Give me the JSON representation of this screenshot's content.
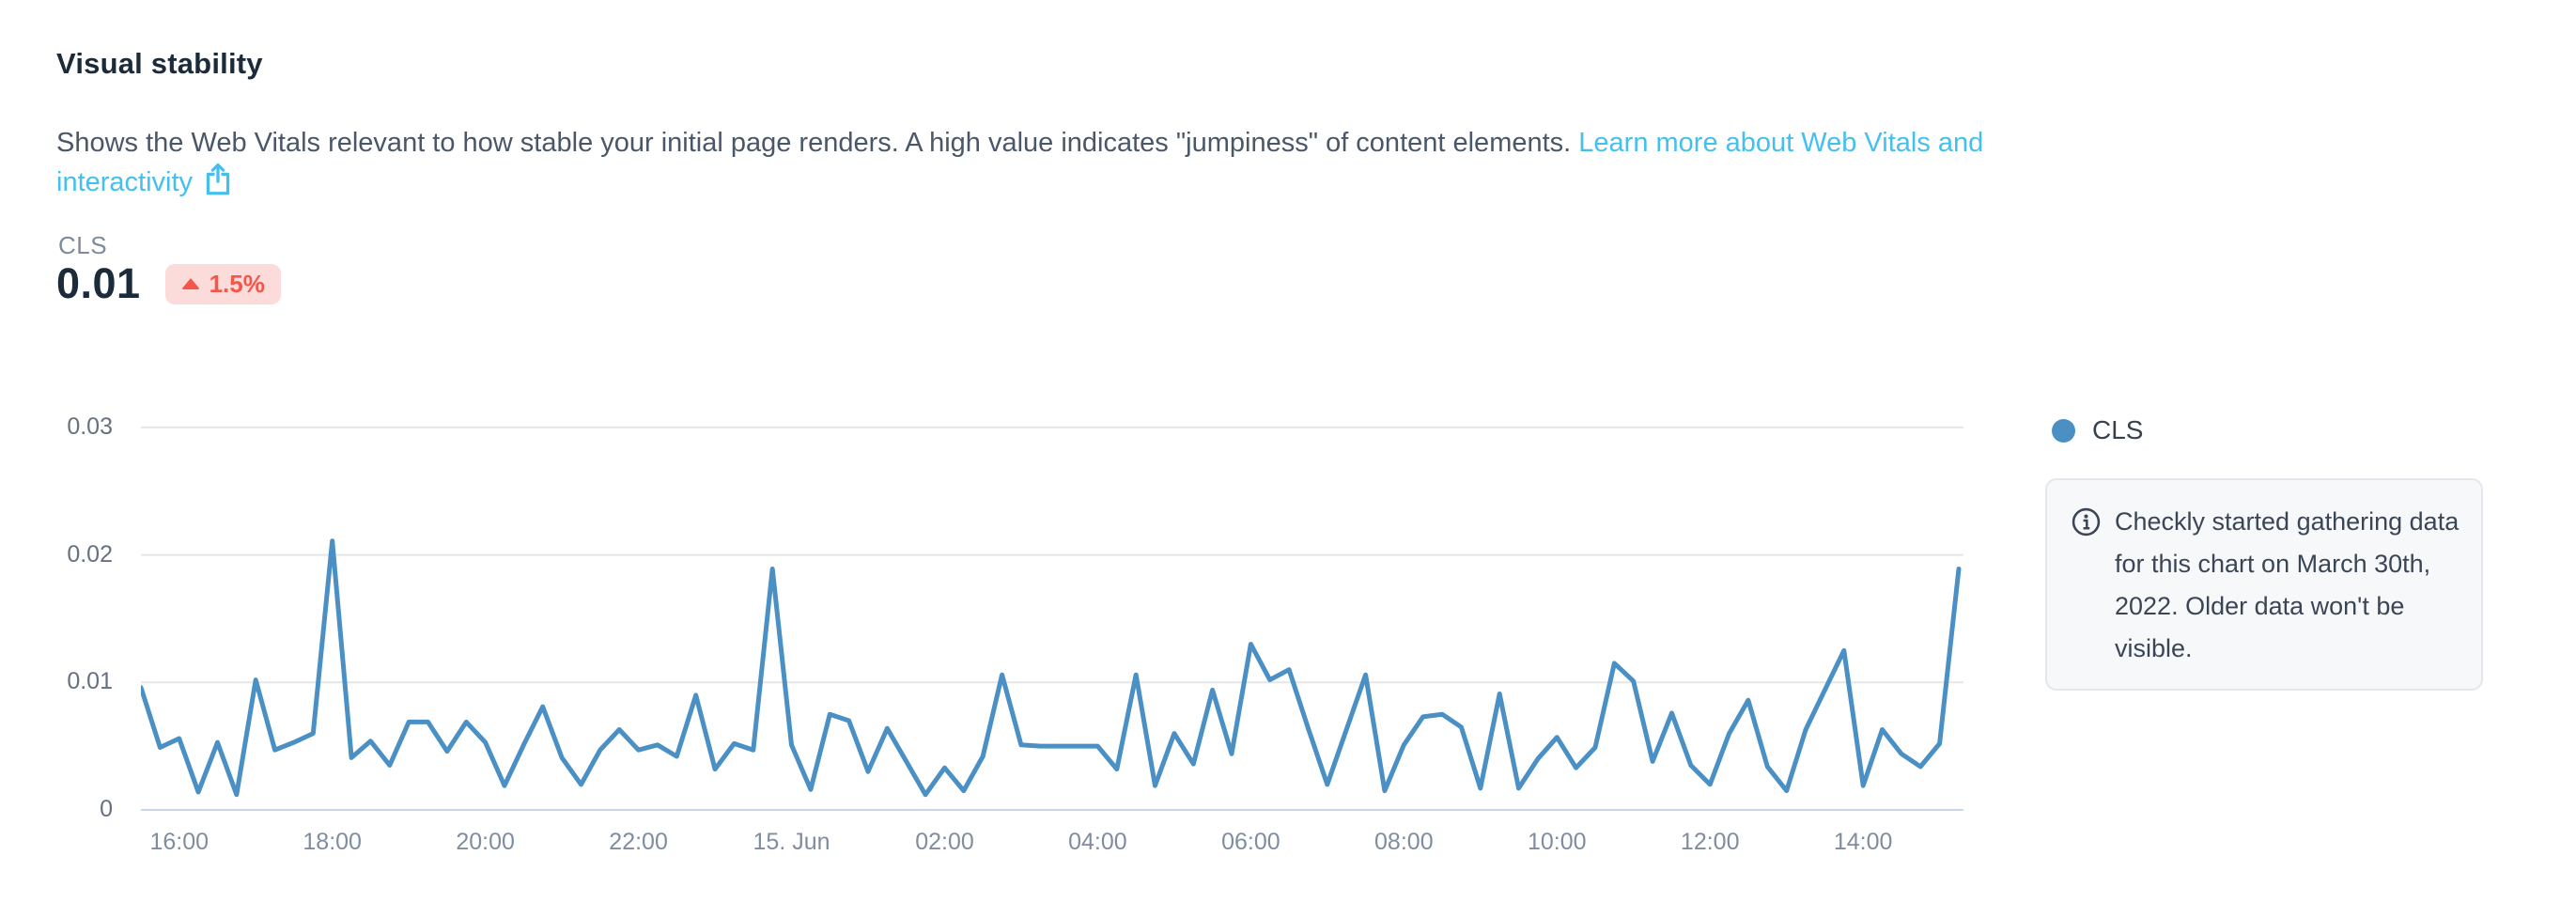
{
  "header": {
    "title": "Visual stability",
    "description": "Shows the Web Vitals relevant to how stable your initial page renders. A high value indicates \"jumpiness\" of content elements.",
    "link_label": "Learn more about Web Vitals and interactivity",
    "link_color": "#45bfee"
  },
  "metric": {
    "label": "CLS",
    "value": "0.01",
    "change": "1.5%",
    "change_direction": "up",
    "badge_bg": "#fcdcda",
    "badge_color": "#f4564b"
  },
  "legend": {
    "label": "CLS",
    "dot_color": "#4a90c4"
  },
  "info": {
    "text": "Checkly started gathering data for this chart on March 30th, 2022. Older data won't be visible.",
    "lines": [
      "Checkly started gathering data",
      "for this chart on March 30th,",
      "2022. Older data won't be",
      "visible."
    ]
  },
  "chart_data": {
    "type": "line",
    "title": "",
    "xlabel": "",
    "ylabel": "",
    "ylim": [
      0,
      0.032
    ],
    "grid": true,
    "grid_color": "#e6e6e6",
    "axis_line_color": "#ccd6eb",
    "legend_position": "right-top",
    "x_axis_note": "24-hour window, points every ~15 minutes, June 14 ~15:30 to June 15 ~15:30",
    "x_tick_labels": [
      "16:00",
      "18:00",
      "20:00",
      "22:00",
      "15. Jun",
      "02:00",
      "04:00",
      "06:00",
      "08:00",
      "10:00",
      "12:00",
      "14:00"
    ],
    "x_tick_indices": [
      2,
      10,
      18,
      26,
      34,
      42,
      50,
      58,
      66,
      74,
      82,
      90
    ],
    "y_ticks": [
      0.03,
      0.02,
      0.01,
      0
    ],
    "y_tick_labels": [
      "0.03",
      "0.02",
      "0.01",
      "0"
    ],
    "series": [
      {
        "name": "CLS",
        "color": "#4a90c4",
        "values": [
          0.0096,
          0.0049,
          0.0056,
          0.0014,
          0.0053,
          0.0012,
          0.0102,
          0.0047,
          0.0053,
          0.006,
          0.0211,
          0.0041,
          0.0054,
          0.0035,
          0.0069,
          0.0069,
          0.0046,
          0.0069,
          0.0053,
          0.0019,
          0.0051,
          0.0081,
          0.0041,
          0.002,
          0.0047,
          0.0063,
          0.0047,
          0.0051,
          0.0042,
          0.009,
          0.0032,
          0.0052,
          0.0047,
          0.0189,
          0.0051,
          0.0016,
          0.0075,
          0.007,
          0.003,
          0.0064,
          0.0038,
          0.0012,
          0.0033,
          0.0015,
          0.0042,
          0.0106,
          0.0051,
          0.005,
          0.005,
          0.005,
          0.005,
          0.0032,
          0.0106,
          0.0019,
          0.006,
          0.0036,
          0.0094,
          0.0044,
          0.013,
          0.0102,
          0.011,
          0.0064,
          0.002,
          0.0063,
          0.0106,
          0.0015,
          0.0051,
          0.0073,
          0.0075,
          0.0065,
          0.0017,
          0.0091,
          0.0017,
          0.004,
          0.0057,
          0.0033,
          0.0049,
          0.0115,
          0.0101,
          0.0038,
          0.0076,
          0.0035,
          0.002,
          0.006,
          0.0086,
          0.0034,
          0.0015,
          0.0063,
          0.0094,
          0.0125,
          0.0019,
          0.0063,
          0.0044,
          0.0034,
          0.0052,
          0.0189
        ]
      }
    ]
  }
}
